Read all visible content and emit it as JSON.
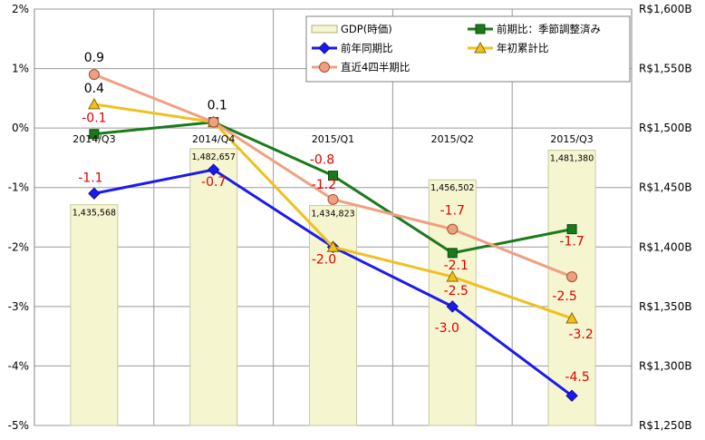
{
  "chart_data": {
    "type": "bar",
    "categories": [
      "2014/Q3",
      "2014/Q4",
      "2015/Q1",
      "2015/Q2",
      "2015/Q3"
    ],
    "left_axis": {
      "min": -5,
      "max": 2,
      "step": 1,
      "tick_labels": [
        "2%",
        "1%",
        "0%",
        "-1%",
        "-2%",
        "-3%",
        "-4%",
        "-5%"
      ]
    },
    "right_axis": {
      "min": 1250,
      "max": 1600,
      "step": 50,
      "tick_labels": [
        "R$1,600B",
        "R$1,550B",
        "R$1,500B",
        "R$1,450B",
        "R$1,400B",
        "R$1,350B",
        "R$1,300B",
        "R$1,250B"
      ]
    },
    "grid": true,
    "legend_placement": "top-center",
    "bars": {
      "name": "GDP(時価)",
      "color": "#f5f5d0",
      "values": [
        1435568,
        1482657,
        1434823,
        1456502,
        1481380
      ],
      "labels": [
        "1,435,568",
        "1,482,657",
        "1,434,823",
        "1,456,502",
        "1,481,380"
      ]
    },
    "series": [
      {
        "name": "前期比：季節調整済み",
        "color": "#1a7a1a",
        "marker": "square",
        "values": [
          -0.1,
          0.1,
          -0.8,
          -2.1,
          -1.7
        ],
        "labels": [
          "-0.1",
          "",
          "-0.8",
          "-2.1",
          "-1.7"
        ]
      },
      {
        "name": "前年同期比",
        "color": "#1a1aee",
        "marker": "diamond",
        "values": [
          -1.1,
          -0.7,
          -2.0,
          -3.0,
          -4.5
        ],
        "labels": [
          "-1.1",
          "-0.7",
          "-2.0",
          "-3.0",
          "-4.5"
        ]
      },
      {
        "name": "年初累計比",
        "color": "#f0c020",
        "marker": "triangle",
        "values": [
          0.4,
          0.1,
          -2.0,
          -2.5,
          -3.2
        ],
        "labels": [
          "0.4",
          "0.1",
          "",
          "-2.5",
          "-3.2"
        ]
      },
      {
        "name": "直近4四半期比",
        "color": "#f0a080",
        "marker": "circle",
        "values": [
          0.9,
          0.1,
          -1.2,
          -1.7,
          -2.5
        ],
        "labels": [
          "0.9",
          "",
          "-1.2",
          "-1.7",
          "-2.5"
        ]
      }
    ]
  }
}
